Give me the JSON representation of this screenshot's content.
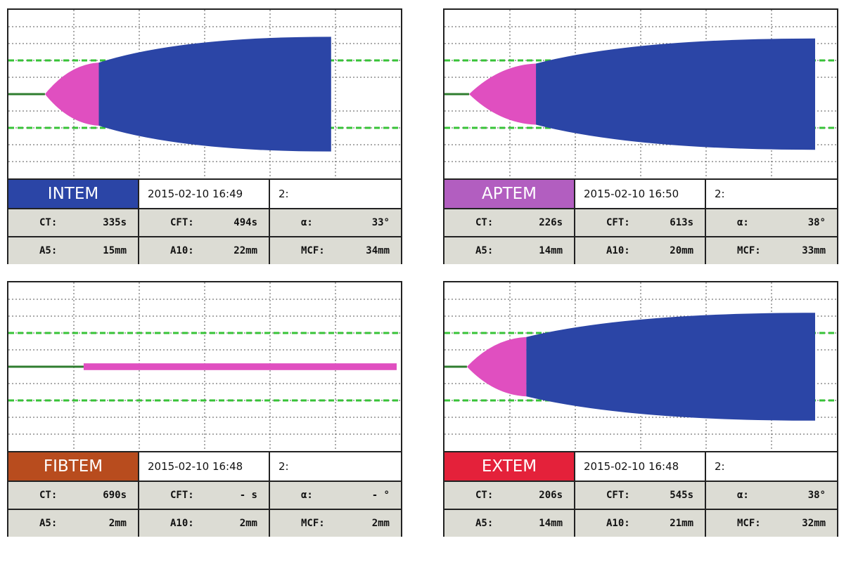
{
  "panels": [
    {
      "name": "INTEM",
      "color": "#2b45a6",
      "date": "2015-02-10  16:49",
      "channel": "2:",
      "params": [
        {
          "label": "CT:",
          "value": "335s"
        },
        {
          "label": "CFT:",
          "value": "494s"
        },
        {
          "label": "α:",
          "value": "33°"
        },
        {
          "label": "A5:",
          "value": "15mm"
        },
        {
          "label": "A10:",
          "value": "22mm"
        },
        {
          "label": "MCF:",
          "value": "34mm"
        }
      ]
    },
    {
      "name": "APTEM",
      "color": "#b25ec0",
      "date": "2015-02-10  16:50",
      "channel": "2:",
      "params": [
        {
          "label": "CT:",
          "value": "226s"
        },
        {
          "label": "CFT:",
          "value": "613s"
        },
        {
          "label": "α:",
          "value": "38°"
        },
        {
          "label": "A5:",
          "value": "14mm"
        },
        {
          "label": "A10:",
          "value": "20mm"
        },
        {
          "label": "MCF:",
          "value": "33mm"
        }
      ]
    },
    {
      "name": "FIBTEM",
      "color": "#b84c1e",
      "date": "2015-02-10  16:48",
      "channel": "2:",
      "params": [
        {
          "label": "CT:",
          "value": "690s"
        },
        {
          "label": "CFT:",
          "value": "- s"
        },
        {
          "label": "α:",
          "value": "- °"
        },
        {
          "label": "A5:",
          "value": "2mm"
        },
        {
          "label": "A10:",
          "value": "2mm"
        },
        {
          "label": "MCF:",
          "value": "2mm"
        }
      ]
    },
    {
      "name": "EXTEM",
      "color": "#e4213a",
      "date": "2015-02-10  16:48",
      "channel": "2:",
      "params": [
        {
          "label": "CT:",
          "value": "206s"
        },
        {
          "label": "CFT:",
          "value": "545s"
        },
        {
          "label": "α:",
          "value": "38°"
        },
        {
          "label": "A5:",
          "value": "14mm"
        },
        {
          "label": "A10:",
          "value": "21mm"
        },
        {
          "label": "MCF:",
          "value": "32mm"
        }
      ]
    }
  ],
  "chart_data": [
    {
      "type": "area",
      "title": "INTEM",
      "x_unit": "s",
      "y_unit": "mm",
      "xlim": [
        0,
        3600
      ],
      "ylim": [
        -50,
        50
      ],
      "reference_band_mm": 20,
      "ct": 335,
      "ct_plus_cft": 829,
      "end": 2960,
      "mcf": 34,
      "colors": {
        "baseline": "#2f7d2f",
        "cft": "#e04fc0",
        "clot": "#2b45a6",
        "band": "#37c337"
      }
    },
    {
      "type": "area",
      "title": "APTEM",
      "x_unit": "s",
      "y_unit": "mm",
      "xlim": [
        0,
        3600
      ],
      "ylim": [
        -50,
        50
      ],
      "reference_band_mm": 20,
      "ct": 226,
      "ct_plus_cft": 839,
      "end": 3400,
      "mcf": 33,
      "colors": {
        "baseline": "#2f7d2f",
        "cft": "#e04fc0",
        "clot": "#2b45a6",
        "band": "#37c337"
      }
    },
    {
      "type": "area",
      "title": "FIBTEM",
      "x_unit": "s",
      "y_unit": "mm",
      "xlim": [
        0,
        3600
      ],
      "ylim": [
        -50,
        50
      ],
      "reference_band_mm": 20,
      "ct": 690,
      "ct_plus_cft": null,
      "end": 3660,
      "mcf": 2,
      "colors": {
        "baseline": "#2f7d2f",
        "cft": "#e04fc0",
        "clot": "#2b45a6",
        "band": "#37c337"
      }
    },
    {
      "type": "area",
      "title": "EXTEM",
      "x_unit": "s",
      "y_unit": "mm",
      "xlim": [
        0,
        3600
      ],
      "ylim": [
        -50,
        50
      ],
      "reference_band_mm": 20,
      "ct": 206,
      "ct_plus_cft": 751,
      "end": 3400,
      "mcf": 32,
      "colors": {
        "baseline": "#2f7d2f",
        "cft": "#e04fc0",
        "clot": "#2b45a6",
        "band": "#37c337"
      }
    }
  ]
}
